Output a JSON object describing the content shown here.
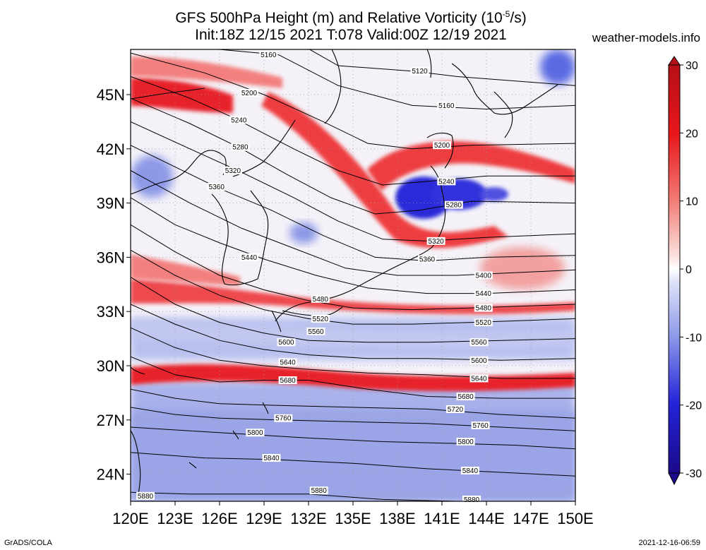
{
  "title_line1": "GFS 500hPa Height (m) and Relative Vorticity (10",
  "title_line1_sup": "-5",
  "title_line1_end": "/s)",
  "title_line2": "Init:18Z 12/15 2021 T:078 Valid:00Z 12/19 2021",
  "site": "weather-models.info",
  "footer_left": "GrADS/COLA",
  "footer_right": "2021-12-16-06:59",
  "map": {
    "lon_range": [
      120,
      150
    ],
    "lat_range": [
      22.5,
      47.5
    ],
    "lon_ticks": [
      "120E",
      "123E",
      "126E",
      "129E",
      "132E",
      "135E",
      "138E",
      "141E",
      "144E",
      "147E",
      "150E"
    ],
    "lat_ticks": [
      "45N",
      "42N",
      "39N",
      "36N",
      "33N",
      "30N",
      "27N",
      "24N"
    ],
    "lat_tick_values": [
      45,
      42,
      39,
      36,
      33,
      30,
      27,
      24
    ],
    "lon_tick_values": [
      120,
      123,
      126,
      129,
      132,
      135,
      138,
      141,
      144,
      147,
      150
    ]
  },
  "colorbar": {
    "labels": [
      "30",
      "20",
      "10",
      "0",
      "-10",
      "-20",
      "-30"
    ],
    "values": [
      30,
      20,
      10,
      0,
      -10,
      -20,
      -30
    ],
    "colors": [
      "#b50f16",
      "#e8171c",
      "#f27a74",
      "#ffffff",
      "#8a96e8",
      "#2323d8",
      "#1c0a8c"
    ]
  },
  "contours": [
    {
      "label": "5120",
      "pts": [
        [
          131,
          48
        ],
        [
          134,
          46.6
        ],
        [
          139,
          46.3
        ],
        [
          142,
          46
        ],
        [
          150,
          45.5
        ]
      ],
      "lbl_at": [
        139.5,
        46.3
      ]
    },
    {
      "label": "5160",
      "pts": [
        [
          120,
          48.6
        ],
        [
          126,
          47.5
        ],
        [
          130,
          47.2
        ],
        [
          134,
          45.5
        ],
        [
          139,
          44.4
        ],
        [
          144,
          44.2
        ],
        [
          150,
          44.4
        ]
      ],
      "lbl_at": [
        129.3,
        47.2
      ]
    },
    {
      "label": "5160",
      "pts": [],
      "lbl_at": [
        141.3,
        44.4
      ]
    },
    {
      "label": "5200",
      "pts": [
        [
          120,
          47.3
        ],
        [
          125,
          46.2
        ],
        [
          129,
          45
        ],
        [
          133,
          43.5
        ],
        [
          136,
          42.3
        ],
        [
          139,
          42
        ],
        [
          143,
          42.2
        ],
        [
          150,
          42.3
        ]
      ],
      "lbl_at": [
        128,
        45.1
      ]
    },
    {
      "label": "5200",
      "pts": [],
      "lbl_at": [
        141,
        42.2
      ]
    },
    {
      "label": "5240",
      "pts": [
        [
          120,
          46
        ],
        [
          124,
          44.8
        ],
        [
          127,
          43.7
        ],
        [
          131,
          42
        ],
        [
          134,
          40.8
        ],
        [
          137,
          40
        ],
        [
          140,
          40.2
        ],
        [
          144,
          40.5
        ],
        [
          150,
          40.5
        ]
      ],
      "lbl_at": [
        127.3,
        43.6
      ]
    },
    {
      "label": "5240",
      "pts": [],
      "lbl_at": [
        141.3,
        40.2
      ]
    },
    {
      "label": "5280",
      "pts": [
        [
          120,
          44.8
        ],
        [
          124,
          43.4
        ],
        [
          127.5,
          42
        ],
        [
          130.5,
          40.6
        ],
        [
          133.5,
          39.3
        ],
        [
          136.5,
          38.4
        ],
        [
          139.5,
          38.6
        ],
        [
          143,
          39.1
        ],
        [
          150,
          39
        ]
      ],
      "lbl_at": [
        127.4,
        42.1
      ]
    },
    {
      "label": "5280",
      "pts": [],
      "lbl_at": [
        141.8,
        38.9
      ]
    },
    {
      "label": "5320",
      "pts": [
        [
          120,
          43.5
        ],
        [
          124,
          42
        ],
        [
          127.5,
          40.7
        ],
        [
          131,
          39.3
        ],
        [
          134,
          38
        ],
        [
          137,
          37
        ],
        [
          140,
          36.9
        ],
        [
          144,
          37.1
        ],
        [
          150,
          37.3
        ]
      ],
      "lbl_at": [
        126.9,
        40.8
      ]
    },
    {
      "label": "5320",
      "pts": [],
      "lbl_at": [
        140.6,
        36.9
      ]
    },
    {
      "label": "5360",
      "pts": [
        [
          120,
          42.2
        ],
        [
          123,
          41
        ],
        [
          126,
          39.8
        ],
        [
          129.5,
          38.6
        ],
        [
          133,
          37.2
        ],
        [
          136.5,
          36
        ],
        [
          140,
          35.8
        ],
        [
          144,
          36
        ],
        [
          150,
          36.1
        ]
      ],
      "lbl_at": [
        125.8,
        39.9
      ]
    },
    {
      "label": "5360",
      "pts": [],
      "lbl_at": [
        140,
        35.9
      ]
    },
    {
      "label": "5400",
      "pts": [
        [
          120,
          40.8
        ],
        [
          124,
          39
        ],
        [
          127.5,
          37.6
        ],
        [
          131,
          36.5
        ],
        [
          134.5,
          35.4
        ],
        [
          138,
          35
        ],
        [
          142,
          35
        ],
        [
          150,
          35.3
        ]
      ],
      "lbl_at": [
        143.8,
        35.0
      ]
    },
    {
      "label": "5440",
      "pts": [
        [
          120,
          39.3
        ],
        [
          123,
          37.8
        ],
        [
          126,
          36.8
        ],
        [
          129,
          35.9
        ],
        [
          132.5,
          35
        ],
        [
          136,
          34.3
        ],
        [
          140,
          34
        ],
        [
          144,
          34
        ],
        [
          150,
          34.2
        ]
      ],
      "lbl_at": [
        128,
        36
      ]
    },
    {
      "label": "5440",
      "pts": [],
      "lbl_at": [
        143.8,
        34.0
      ]
    },
    {
      "label": "5480",
      "pts": [
        [
          120,
          37.8
        ],
        [
          123,
          36.3
        ],
        [
          126,
          35
        ],
        [
          129,
          34.2
        ],
        [
          132,
          33.6
        ],
        [
          135,
          33.2
        ],
        [
          139,
          33.1
        ],
        [
          143,
          33.2
        ],
        [
          150,
          33.4
        ]
      ],
      "lbl_at": [
        132.8,
        33.7
      ]
    },
    {
      "label": "5480",
      "pts": [],
      "lbl_at": [
        143.8,
        33.2
      ]
    },
    {
      "label": "5520",
      "pts": [
        [
          120,
          36.4
        ],
        [
          123,
          35
        ],
        [
          126,
          33.9
        ],
        [
          129,
          33.1
        ],
        [
          132,
          32.6
        ],
        [
          135,
          32.3
        ],
        [
          139,
          32.3
        ],
        [
          143,
          32.4
        ],
        [
          150,
          32.6
        ]
      ],
      "lbl_at": [
        132.8,
        32.6
      ]
    },
    {
      "label": "5520",
      "pts": [],
      "lbl_at": [
        143.8,
        32.4
      ]
    },
    {
      "label": "5560",
      "pts": [
        [
          120,
          34.9
        ],
        [
          123,
          33.4
        ],
        [
          126,
          32.4
        ],
        [
          129,
          31.8
        ],
        [
          132,
          31.4
        ],
        [
          136,
          31.3
        ],
        [
          140,
          31.3
        ],
        [
          145,
          31.4
        ],
        [
          150,
          31.5
        ]
      ],
      "lbl_at": [
        132.5,
        31.9
      ]
    },
    {
      "label": "5560",
      "pts": [],
      "lbl_at": [
        143.5,
        31.3
      ]
    },
    {
      "label": "5600",
      "pts": [
        [
          120,
          33.4
        ],
        [
          123,
          32.3
        ],
        [
          126,
          31.4
        ],
        [
          129,
          30.9
        ],
        [
          132,
          30.6
        ],
        [
          136,
          30.4
        ],
        [
          140,
          30.4
        ],
        [
          145,
          30.3
        ],
        [
          150,
          30.4
        ]
      ],
      "lbl_at": [
        130.5,
        31.3
      ]
    },
    {
      "label": "5600",
      "pts": [],
      "lbl_at": [
        143.5,
        30.3
      ]
    },
    {
      "label": "5640",
      "pts": [
        [
          120,
          32.1
        ],
        [
          123,
          31
        ],
        [
          126,
          30.3
        ],
        [
          129,
          30
        ],
        [
          132,
          29.8
        ],
        [
          136,
          29.6
        ],
        [
          140,
          29.5
        ],
        [
          145,
          29.3
        ],
        [
          150,
          29.3
        ]
      ],
      "lbl_at": [
        130.6,
        30.2
      ]
    },
    {
      "label": "5640",
      "pts": [],
      "lbl_at": [
        143.5,
        29.3
      ]
    },
    {
      "label": "5680",
      "pts": [
        [
          120,
          30.5
        ],
        [
          123,
          29.5
        ],
        [
          126,
          29.1
        ],
        [
          129,
          29.2
        ],
        [
          132,
          29.2
        ],
        [
          136,
          28.7
        ],
        [
          140,
          28.3
        ],
        [
          145,
          28.2
        ],
        [
          150,
          28.2
        ]
      ],
      "lbl_at": [
        130.6,
        29.2
      ]
    },
    {
      "label": "5680",
      "pts": [],
      "lbl_at": [
        142.6,
        28.3
      ]
    },
    {
      "label": "5720",
      "pts": [
        [
          120,
          28.7
        ],
        [
          123,
          28.2
        ],
        [
          126,
          27.9
        ],
        [
          130,
          27.8
        ],
        [
          135,
          27.7
        ],
        [
          140,
          27.6
        ],
        [
          145,
          27.3
        ],
        [
          150,
          27.1
        ]
      ],
      "lbl_at": [
        141.9,
        27.6
      ]
    },
    {
      "label": "5760",
      "pts": [
        [
          120,
          27.7
        ],
        [
          123,
          27.3
        ],
        [
          126,
          27.1
        ],
        [
          130,
          27
        ],
        [
          135,
          26.9
        ],
        [
          140,
          26.8
        ],
        [
          145,
          26.6
        ],
        [
          150,
          26.4
        ]
      ],
      "lbl_at": [
        130.3,
        27.1
      ]
    },
    {
      "label": "5760",
      "pts": [],
      "lbl_at": [
        143.6,
        26.7
      ]
    },
    {
      "label": "5800",
      "pts": [
        [
          120,
          26.6
        ],
        [
          124,
          26.4
        ],
        [
          128,
          26.2
        ],
        [
          132,
          26
        ],
        [
          137,
          25.8
        ],
        [
          142,
          25.7
        ],
        [
          146,
          25.6
        ],
        [
          150,
          25.4
        ]
      ],
      "lbl_at": [
        128.4,
        26.3
      ]
    },
    {
      "label": "5800",
      "pts": [],
      "lbl_at": [
        142.6,
        25.8
      ]
    },
    {
      "label": "5840",
      "pts": [
        [
          120,
          25.2
        ],
        [
          125,
          24.9
        ],
        [
          130,
          24.8
        ],
        [
          135,
          24.6
        ],
        [
          140,
          24.3
        ],
        [
          145,
          24.1
        ],
        [
          150,
          23.9
        ]
      ],
      "lbl_at": [
        129.5,
        24.9
      ]
    },
    {
      "label": "5840",
      "pts": [],
      "lbl_at": [
        142.9,
        24.2
      ]
    },
    {
      "label": "5880",
      "pts": [
        [
          120,
          23
        ],
        [
          124,
          22.9
        ],
        [
          128,
          22.9
        ],
        [
          132,
          22.9
        ],
        [
          137,
          22.6
        ],
        [
          142,
          22.5
        ],
        [
          146,
          22.5
        ],
        [
          150,
          22.4
        ]
      ],
      "lbl_at": [
        121,
        22.8
      ]
    },
    {
      "label": "5880",
      "pts": [],
      "lbl_at": [
        132.7,
        23.1
      ]
    },
    {
      "label": "5880",
      "pts": [],
      "lbl_at": [
        143,
        22.6
      ]
    }
  ]
}
